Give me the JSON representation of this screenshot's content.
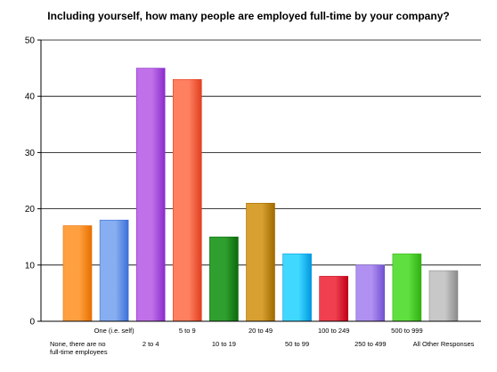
{
  "chart_data": {
    "type": "bar",
    "title": "Including yourself, how many people are employed full-time by your company?",
    "xlabel": "",
    "ylabel": "",
    "ylim": [
      0,
      50
    ],
    "yticks": [
      0,
      10,
      20,
      30,
      40,
      50
    ],
    "grid": true,
    "legend": "none",
    "categories": [
      "None, there are no full-time employees",
      "One (i.e. self)",
      "2 to 4",
      "5 to 9",
      "10 to 19",
      "20 to 49",
      "50 to 99",
      "100 to 249",
      "250 to 499",
      "500 to 999",
      "All Other Responses"
    ],
    "category_label_lines": [
      [
        "None, there are no",
        "full-time employees"
      ],
      [
        "One (i.e. self)"
      ],
      [
        "2 to 4"
      ],
      [
        "5 to 9"
      ],
      [
        "10 to 19"
      ],
      [
        "20 to 49"
      ],
      [
        "50 to 99"
      ],
      [
        "100 to 249"
      ],
      [
        "250 to 499"
      ],
      [
        "500 to 999"
      ],
      [
        "All Other Responses"
      ]
    ],
    "values": [
      17,
      18,
      45,
      43,
      15,
      21,
      12,
      8,
      10,
      12,
      9
    ],
    "colors": [
      [
        "#ffa040",
        "#e87000"
      ],
      [
        "#86aef0",
        "#3d6fd8"
      ],
      [
        "#c070e8",
        "#8a2ccc"
      ],
      [
        "#ff8060",
        "#e04020"
      ],
      [
        "#2fa02f",
        "#0b6a0b"
      ],
      [
        "#d8a030",
        "#a06a00"
      ],
      [
        "#40d8ff",
        "#0098e0"
      ],
      [
        "#f04050",
        "#c00018"
      ],
      [
        "#b090f0",
        "#7050d0"
      ],
      [
        "#60e040",
        "#30b010"
      ],
      [
        "#c8c8c8",
        "#8a8a8a"
      ]
    ]
  }
}
